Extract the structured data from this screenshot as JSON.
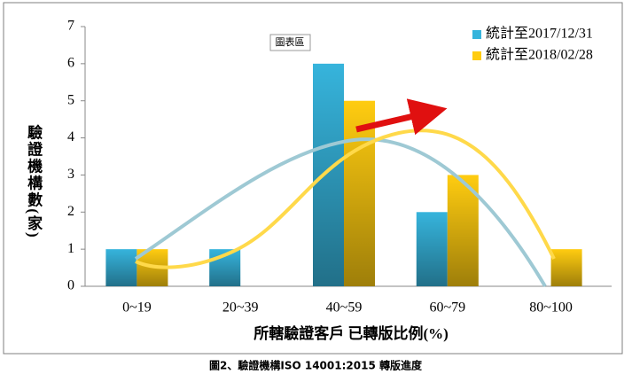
{
  "chart_data": {
    "type": "bar",
    "categories": [
      "0~19",
      "20~39",
      "40~59",
      "60~79",
      "80~100"
    ],
    "series": [
      {
        "name": "統計至2017/12/31",
        "color": "#36b4dc",
        "values": [
          1,
          1,
          6,
          2,
          0
        ]
      },
      {
        "name": "統計至2018/02/28",
        "color": "#ffcc10",
        "values": [
          1,
          0,
          5,
          3,
          1
        ]
      }
    ],
    "ylim": [
      0,
      7
    ],
    "yticks": [
      0,
      1,
      2,
      3,
      4,
      5,
      6,
      7
    ],
    "grid": false,
    "y_label": "驗證機構數(家)",
    "x_label": "所轄驗證客戶 已轉版比例(%)",
    "annotation": "圖表區",
    "caption": "圖2、驗證機構ISO 14001:2015 轉版進度",
    "legend": "top-right"
  }
}
